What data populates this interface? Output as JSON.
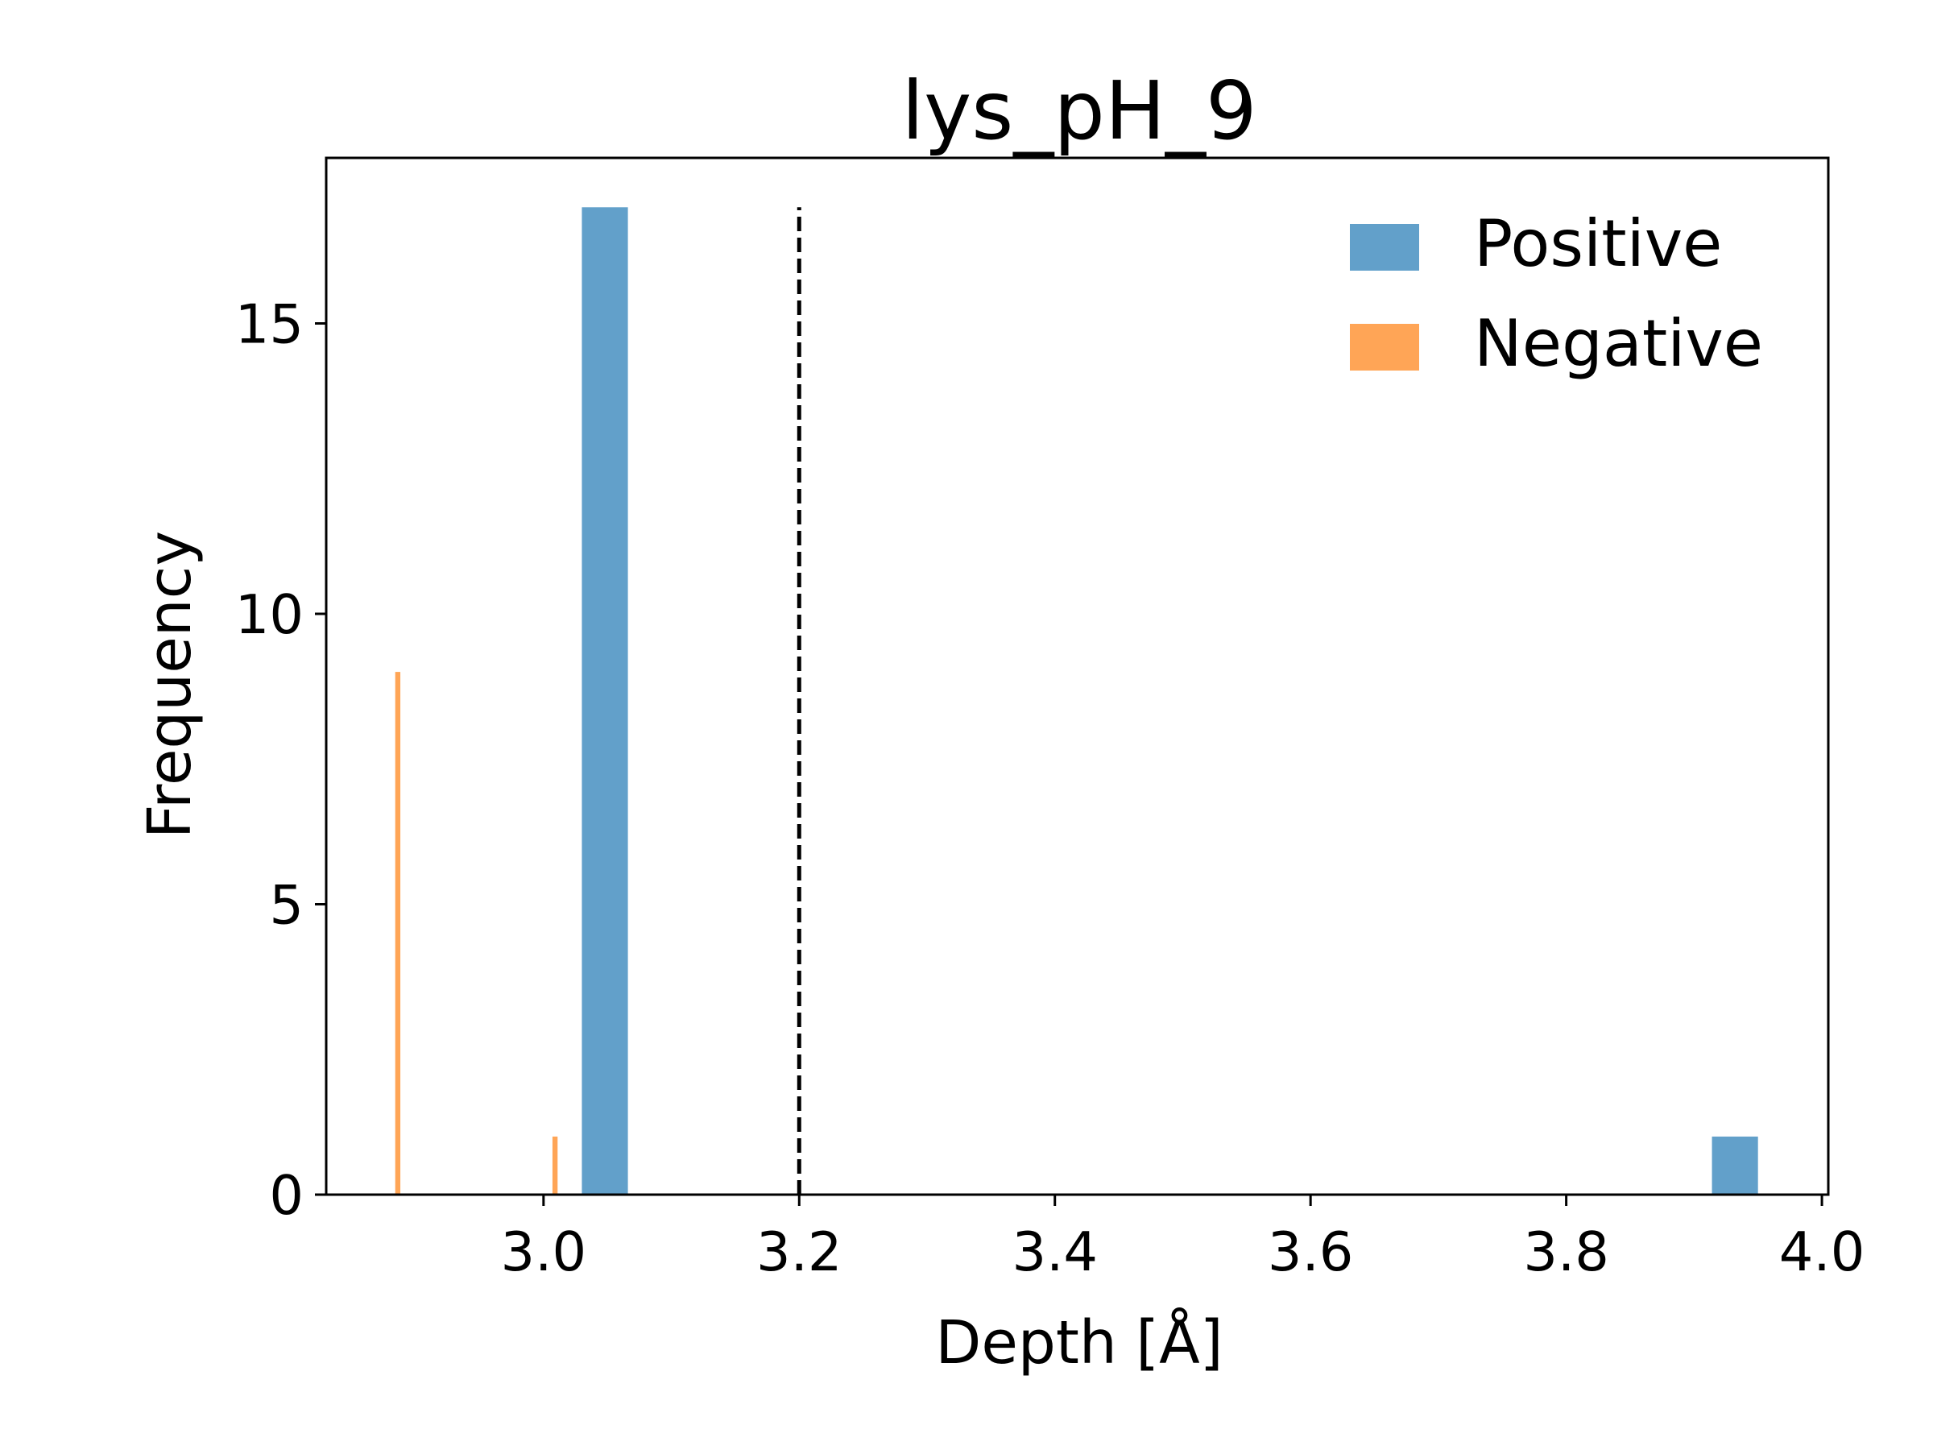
{
  "chart_data": {
    "type": "bar",
    "title": "lys_pH_9",
    "xlabel": "Depth [Å]",
    "ylabel": "Frequency",
    "xlim": [
      2.83,
      4.005
    ],
    "ylim": [
      0,
      17.85
    ],
    "xticks": [
      3.0,
      3.2,
      3.4,
      3.6,
      3.8,
      4.0
    ],
    "xtick_labels": [
      "3.0",
      "3.2",
      "3.4",
      "3.6",
      "3.8",
      "4.0"
    ],
    "yticks": [
      0,
      5,
      10,
      15
    ],
    "ytick_labels": [
      "0",
      "5",
      "10",
      "15"
    ],
    "grid": false,
    "legend_position": "top-right",
    "series": [
      {
        "name": "Positive",
        "color": "#1f77b4",
        "opacity": 0.7,
        "bars": [
          {
            "x0": 3.03,
            "x1": 3.066,
            "value": 17
          },
          {
            "x0": 3.914,
            "x1": 3.95,
            "value": 1
          }
        ]
      },
      {
        "name": "Negative",
        "color": "#ff7f0e",
        "opacity": 0.7,
        "bars": [
          {
            "x0": 2.884,
            "x1": 2.888,
            "value": 9
          },
          {
            "x0": 3.007,
            "x1": 3.011,
            "value": 1
          }
        ]
      }
    ],
    "reference_line": {
      "x": 3.2,
      "style": "dashed",
      "color": "#000000",
      "y_top": 17
    }
  }
}
